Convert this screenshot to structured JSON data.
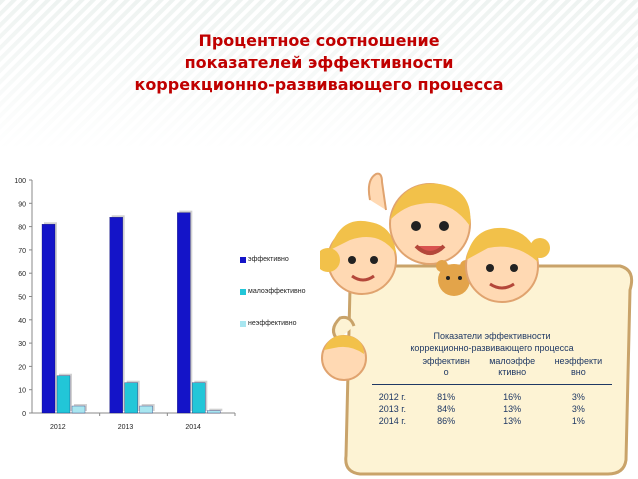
{
  "title": {
    "line1": "Процентное соотношение",
    "line2": "показателей эффективности",
    "line3": "коррекционно-развивающего процесса"
  },
  "chart_data": {
    "type": "bar",
    "categories": [
      "2012",
      "2013",
      "2014"
    ],
    "series": [
      {
        "name": "эффективно",
        "values": [
          81,
          84,
          86
        ],
        "color": "#1414c8"
      },
      {
        "name": "малоэффективно",
        "values": [
          16,
          13,
          13
        ],
        "color": "#22c6d8"
      },
      {
        "name": "неэффективно",
        "values": [
          3,
          3,
          1
        ],
        "color": "#a8e6f0"
      }
    ],
    "yticks": [
      0,
      10,
      20,
      30,
      40,
      50,
      60,
      70,
      80,
      90,
      100
    ],
    "ylim": [
      0,
      100
    ],
    "legend_position": "right",
    "grid": false
  },
  "table": {
    "caption_line1": "Показатели эффективности",
    "caption_line2": "коррекционно-развивающего процесса",
    "headers": [
      {
        "line1": "",
        "line2": ""
      },
      {
        "line1": "эффективн",
        "line2": "о"
      },
      {
        "line1": "малоэффе",
        "line2": "ктивно"
      },
      {
        "line1": "неэффекти",
        "line2": "вно"
      }
    ],
    "rows": [
      {
        "year": "2012 г.",
        "eff": "81%",
        "low": "16%",
        "none": "3%"
      },
      {
        "year": "2013 г.",
        "eff": "84%",
        "low": "13%",
        "none": "3%"
      },
      {
        "year": "2014 г.",
        "eff": "86%",
        "low": "13%",
        "none": "1%"
      }
    ]
  },
  "colors": {
    "title": "#c00000",
    "table_text": "#1f3864",
    "frame_fill": "#fdf3d4",
    "frame_stroke": "#c9a36a",
    "stripes": "#f0f4f2"
  },
  "icons": [
    "children-illustration-icon",
    "teddy-bear-icon"
  ]
}
